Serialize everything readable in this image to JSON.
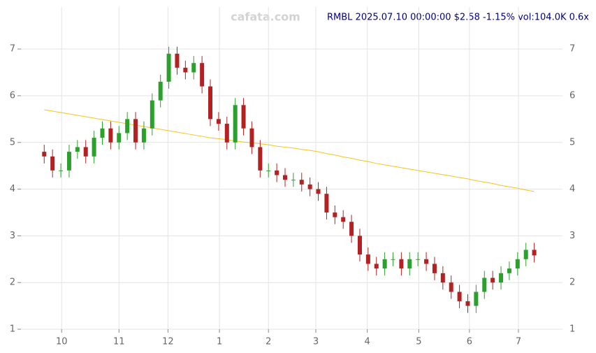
{
  "chart_data": {
    "type": "candlestick",
    "title": "RMBL 2025.07.10 00:00:00 $2.58 -1.15% vol:104.0K 0.6x",
    "watermark": "cafata.com",
    "x": [
      0,
      1,
      2,
      3,
      4,
      5,
      6,
      7,
      8,
      9,
      10,
      11,
      12,
      13,
      14,
      15,
      16,
      17,
      18,
      19,
      20,
      21,
      22,
      23,
      24,
      25,
      26,
      27,
      28,
      29,
      30,
      31,
      32,
      33,
      34,
      35,
      36,
      37,
      38,
      39,
      40,
      41,
      42,
      43,
      44,
      45,
      46,
      47,
      48,
      49,
      50,
      51,
      52,
      53,
      54,
      55,
      56,
      57,
      58,
      59
    ],
    "open": [
      4.8,
      4.7,
      4.4,
      4.4,
      4.8,
      4.9,
      4.7,
      5.1,
      5.3,
      5.0,
      5.2,
      5.5,
      5.0,
      5.3,
      5.9,
      6.3,
      6.9,
      6.6,
      6.5,
      6.7,
      6.2,
      5.5,
      5.4,
      5.0,
      5.8,
      5.3,
      4.9,
      4.4,
      4.4,
      4.3,
      4.2,
      4.2,
      4.1,
      4.0,
      3.9,
      3.5,
      3.4,
      3.3,
      3.0,
      2.6,
      2.4,
      2.3,
      2.5,
      2.5,
      2.3,
      2.5,
      2.5,
      2.4,
      2.2,
      2.0,
      1.8,
      1.6,
      1.5,
      1.8,
      2.1,
      2.0,
      2.2,
      2.3,
      2.5,
      2.7
    ],
    "high": [
      4.95,
      4.85,
      4.55,
      4.95,
      5.05,
      5.05,
      5.25,
      5.45,
      5.45,
      5.35,
      5.65,
      5.65,
      5.45,
      6.05,
      6.45,
      7.05,
      7.05,
      6.75,
      6.85,
      6.85,
      6.35,
      5.65,
      5.55,
      5.95,
      5.95,
      5.45,
      5.05,
      4.55,
      4.55,
      4.45,
      4.35,
      4.35,
      4.25,
      4.15,
      4.05,
      3.65,
      3.55,
      3.45,
      3.15,
      2.75,
      2.55,
      2.65,
      2.65,
      2.65,
      2.65,
      2.65,
      2.65,
      2.55,
      2.35,
      2.15,
      1.95,
      1.75,
      1.95,
      2.25,
      2.25,
      2.35,
      2.45,
      2.65,
      2.85,
      2.85
    ],
    "low": [
      4.55,
      4.25,
      4.25,
      4.25,
      4.65,
      4.55,
      4.55,
      4.95,
      4.85,
      4.85,
      5.05,
      4.85,
      4.85,
      5.15,
      5.75,
      6.15,
      6.45,
      6.35,
      6.35,
      6.05,
      5.35,
      5.25,
      4.85,
      4.85,
      5.15,
      4.75,
      4.25,
      4.25,
      4.15,
      4.05,
      4.05,
      3.95,
      3.85,
      3.75,
      3.35,
      3.25,
      3.15,
      2.85,
      2.45,
      2.25,
      2.15,
      2.15,
      2.35,
      2.15,
      2.15,
      2.35,
      2.25,
      2.05,
      1.85,
      1.65,
      1.45,
      1.35,
      1.35,
      1.65,
      1.85,
      1.85,
      2.05,
      2.15,
      2.35,
      2.43
    ],
    "close": [
      4.7,
      4.4,
      4.4,
      4.8,
      4.9,
      4.7,
      5.1,
      5.3,
      5.0,
      5.2,
      5.5,
      5.0,
      5.3,
      5.9,
      6.3,
      6.9,
      6.6,
      6.5,
      6.7,
      6.2,
      5.5,
      5.4,
      5.0,
      5.8,
      5.3,
      4.9,
      4.4,
      4.4,
      4.3,
      4.2,
      4.2,
      4.1,
      4.0,
      3.9,
      3.5,
      3.4,
      3.3,
      3.0,
      2.6,
      2.4,
      2.3,
      2.5,
      2.5,
      2.3,
      2.5,
      2.5,
      2.4,
      2.2,
      2.0,
      1.8,
      1.6,
      1.5,
      1.8,
      2.1,
      2.0,
      2.2,
      2.3,
      2.5,
      2.7,
      2.58
    ],
    "up_color": "#2ca02c",
    "down_color": "#b22222",
    "lines": [
      {
        "color": "#f5c518",
        "values": [
          5.7,
          5.67,
          5.64,
          5.61,
          5.58,
          5.55,
          5.52,
          5.49,
          5.46,
          5.43,
          5.4,
          5.37,
          5.34,
          5.31,
          5.28,
          5.25,
          5.22,
          5.19,
          5.16,
          5.13,
          5.1,
          5.08,
          5.06,
          5.03,
          5.01,
          4.99,
          4.97,
          4.95,
          4.92,
          4.9,
          4.88,
          4.85,
          4.83,
          4.8,
          4.76,
          4.73,
          4.69,
          4.66,
          4.62,
          4.59,
          4.55,
          4.52,
          4.49,
          4.46,
          4.43,
          4.4,
          4.37,
          4.34,
          4.31,
          4.28,
          4.25,
          4.22,
          4.18,
          4.15,
          4.12,
          4.08,
          4.05,
          4.02,
          3.98,
          3.95
        ]
      }
    ],
    "xlim": [
      -2.8,
      62.4
    ],
    "xticks": [
      {
        "value": 2.1,
        "label": "10"
      },
      {
        "value": 9.0,
        "label": "11"
      },
      {
        "value": 14.9,
        "label": "12"
      },
      {
        "value": 21.1,
        "label": "1"
      },
      {
        "value": 27.0,
        "label": "2"
      },
      {
        "value": 32.7,
        "label": "3"
      },
      {
        "value": 38.9,
        "label": "4"
      },
      {
        "value": 45.1,
        "label": "5"
      },
      {
        "value": 51.2,
        "label": "6"
      },
      {
        "value": 57.1,
        "label": "7"
      }
    ],
    "ylim": [
      1,
      7.9
    ],
    "yticks": [
      1,
      2,
      3,
      4,
      5,
      6,
      7
    ],
    "grid": true
  }
}
